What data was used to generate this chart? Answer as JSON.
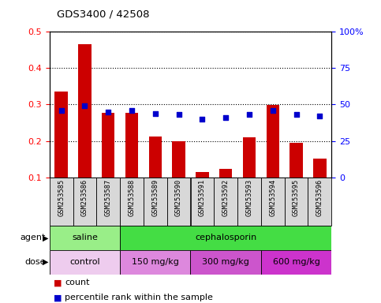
{
  "title": "GDS3400 / 42508",
  "samples": [
    "GSM253585",
    "GSM253586",
    "GSM253587",
    "GSM253588",
    "GSM253589",
    "GSM253590",
    "GSM253591",
    "GSM253592",
    "GSM253593",
    "GSM253594",
    "GSM253595",
    "GSM253596"
  ],
  "count_values": [
    0.335,
    0.465,
    0.278,
    0.278,
    0.212,
    0.2,
    0.115,
    0.123,
    0.21,
    0.298,
    0.195,
    0.152
  ],
  "percentile_values": [
    46,
    49,
    45,
    46,
    44,
    43,
    40,
    41,
    43,
    46,
    43,
    42
  ],
  "bar_color": "#cc0000",
  "dot_color": "#0000cc",
  "ylim_left": [
    0.1,
    0.5
  ],
  "ylim_right": [
    0,
    100
  ],
  "yticks_left": [
    0.1,
    0.2,
    0.3,
    0.4,
    0.5
  ],
  "yticks_right": [
    0,
    25,
    50,
    75,
    100
  ],
  "yticklabels_right": [
    "0",
    "25",
    "50",
    "75",
    "100%"
  ],
  "agent_labels": [
    {
      "text": "saline",
      "start": 0,
      "end": 3,
      "color": "#99ee88"
    },
    {
      "text": "cephalosporin",
      "start": 3,
      "end": 12,
      "color": "#44dd44"
    }
  ],
  "dose_labels": [
    {
      "text": "control",
      "start": 0,
      "end": 3,
      "color": "#eeccee"
    },
    {
      "text": "150 mg/kg",
      "start": 3,
      "end": 6,
      "color": "#dd88dd"
    },
    {
      "text": "300 mg/kg",
      "start": 6,
      "end": 9,
      "color": "#cc55cc"
    },
    {
      "text": "600 mg/kg",
      "start": 9,
      "end": 12,
      "color": "#cc33cc"
    }
  ],
  "legend_count_color": "#cc0000",
  "legend_dot_color": "#0000cc",
  "bg_color": "#d8d8d8",
  "plot_bg": "#ffffff"
}
